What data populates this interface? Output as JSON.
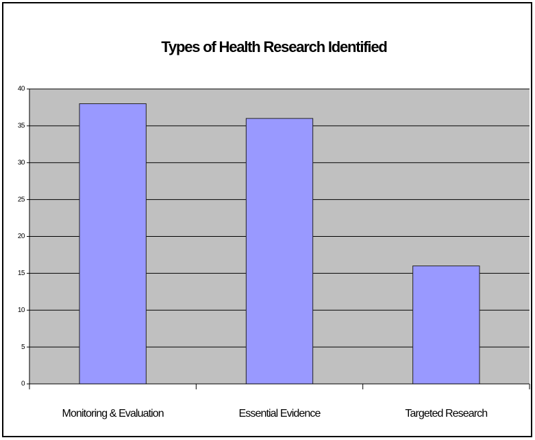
{
  "chart_data": {
    "type": "bar",
    "title": "Types of Health Research Identified",
    "categories": [
      "Monitoring & Evaluation",
      "Essential Evidence",
      "Targeted Research"
    ],
    "values": [
      38,
      36,
      16
    ],
    "color": "#9999ff",
    "ylim": [
      0,
      40
    ],
    "yticks": [
      0,
      5,
      10,
      15,
      20,
      25,
      30,
      35,
      40
    ],
    "grid": true
  }
}
